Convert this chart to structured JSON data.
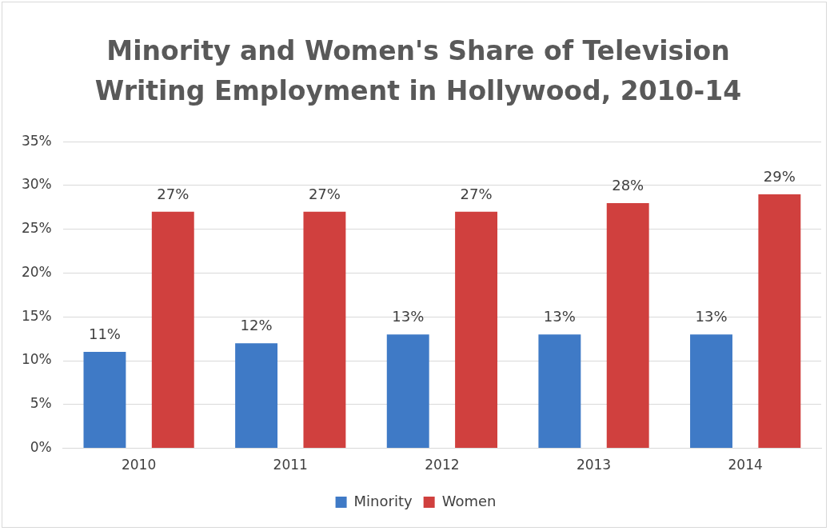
{
  "chart_data": {
    "type": "bar",
    "title": "Minority and Women's Share of Television Writing Employment in Hollywood, 2010-14",
    "categories": [
      "2010",
      "2011",
      "2012",
      "2013",
      "2014"
    ],
    "series": [
      {
        "name": "Minority",
        "color": "#3f7ac6",
        "values": [
          11,
          12,
          13,
          13,
          13
        ],
        "value_labels": [
          "11%",
          "12%",
          "13%",
          "13%",
          "13%"
        ]
      },
      {
        "name": "Women",
        "color": "#d0403e",
        "values": [
          27,
          27,
          27,
          28,
          29
        ],
        "value_labels": [
          "27%",
          "27%",
          "27%",
          "28%",
          "29%"
        ]
      }
    ],
    "ylim": [
      0,
      35
    ],
    "yticks": [
      {
        "value": 0,
        "label": "0%"
      },
      {
        "value": 5,
        "label": "5%"
      },
      {
        "value": 10,
        "label": "10%"
      },
      {
        "value": 15,
        "label": "15%"
      },
      {
        "value": 20,
        "label": "20%"
      },
      {
        "value": 25,
        "label": "25%"
      },
      {
        "value": 30,
        "label": "30%"
      },
      {
        "value": 35,
        "label": "35%"
      }
    ],
    "grid": "y",
    "legend": "bottom"
  }
}
